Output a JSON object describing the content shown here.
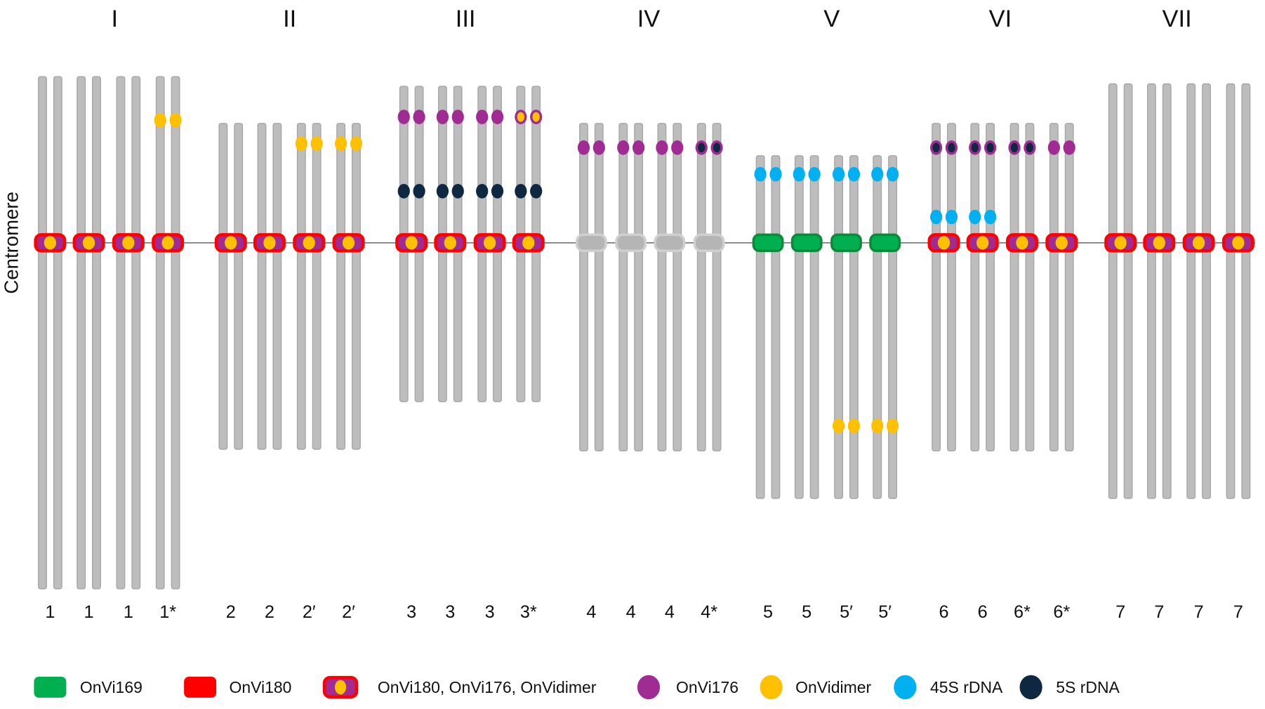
{
  "axis_label": "Centromere",
  "colors": {
    "chromosome": "#bdbdbd",
    "chromosome_edge": "#a6a6a6",
    "centromere_line": "#7f7f7f",
    "OnVi169": "#00b050",
    "OnVi180": "#ff0000",
    "OnVi176": "#a02b93",
    "OnVidimer": "#ffc000",
    "45S rDNA": "#00b0f0",
    "5S rDNA": "#0e2841",
    "none": "#bfbfbf"
  },
  "groups": [
    {
      "title": "I",
      "chromosomes": [
        {
          "label": "1",
          "centromere": "OnVi180, OnVi176, OnVidimer",
          "signals": []
        },
        {
          "label": "1",
          "centromere": "OnVi180, OnVi176, OnVidimer",
          "signals": []
        },
        {
          "label": "1",
          "centromere": "OnVi180, OnVi176, OnVidimer",
          "signals": []
        },
        {
          "label": "1*",
          "centromere": "OnVi180, OnVi176, OnVidimer",
          "signals": [
            "OnVidimer"
          ]
        }
      ]
    },
    {
      "title": "II",
      "chromosomes": [
        {
          "label": "2",
          "centromere": "OnVi180, OnVi176, OnVidimer",
          "signals": []
        },
        {
          "label": "2",
          "centromere": "OnVi180, OnVi176, OnVidimer",
          "signals": []
        },
        {
          "label": "2′",
          "centromere": "OnVi180, OnVi176, OnVidimer",
          "signals": [
            "OnVidimer"
          ]
        },
        {
          "label": "2′",
          "centromere": "OnVi180, OnVi176, OnVidimer",
          "signals": [
            "OnVidimer"
          ]
        }
      ]
    },
    {
      "title": "III",
      "chromosomes": [
        {
          "label": "3",
          "centromere": "OnVi180, OnVi176, OnVidimer",
          "signals": [
            "OnVi176",
            "5S rDNA"
          ]
        },
        {
          "label": "3",
          "centromere": "OnVi180, OnVi176, OnVidimer",
          "signals": [
            "OnVi176",
            "5S rDNA"
          ]
        },
        {
          "label": "3",
          "centromere": "OnVi180, OnVi176, OnVidimer",
          "signals": [
            "OnVi176",
            "5S rDNA"
          ]
        },
        {
          "label": "3*",
          "centromere": "OnVi180, OnVi176, OnVidimer",
          "signals": [
            "OnVi176+OnVidimer",
            "5S rDNA"
          ]
        }
      ]
    },
    {
      "title": "IV",
      "chromosomes": [
        {
          "label": "4",
          "centromere": "none",
          "signals": [
            "OnVi176"
          ]
        },
        {
          "label": "4",
          "centromere": "none",
          "signals": [
            "OnVi176"
          ]
        },
        {
          "label": "4",
          "centromere": "none",
          "signals": [
            "OnVi176"
          ]
        },
        {
          "label": "4*",
          "centromere": "none",
          "signals": [
            "OnVi176+5S rDNA"
          ]
        }
      ]
    },
    {
      "title": "V",
      "chromosomes": [
        {
          "label": "5",
          "centromere": "OnVi169",
          "signals": [
            "45S rDNA"
          ]
        },
        {
          "label": "5",
          "centromere": "OnVi169",
          "signals": [
            "45S rDNA"
          ]
        },
        {
          "label": "5′",
          "centromere": "OnVi169",
          "signals": [
            "45S rDNA",
            "OnVidimer"
          ]
        },
        {
          "label": "5′",
          "centromere": "OnVi169",
          "signals": [
            "45S rDNA",
            "OnVidimer"
          ]
        }
      ]
    },
    {
      "title": "VI",
      "chromosomes": [
        {
          "label": "6",
          "centromere": "OnVi180, OnVi176, OnVidimer",
          "signals": [
            "OnVi176+5S rDNA",
            "45S rDNA"
          ]
        },
        {
          "label": "6",
          "centromere": "OnVi180, OnVi176, OnVidimer",
          "signals": [
            "OnVi176+5S rDNA",
            "45S rDNA"
          ]
        },
        {
          "label": "6*",
          "centromere": "OnVi180, OnVi176, OnVidimer",
          "signals": [
            "OnVi176+5S rDNA"
          ]
        },
        {
          "label": "6*",
          "centromere": "OnVi180, OnVi176, OnVidimer",
          "signals": [
            "OnVi176"
          ]
        }
      ]
    },
    {
      "title": "VII",
      "chromosomes": [
        {
          "label": "7",
          "centromere": "OnVi180, OnVi176, OnVidimer",
          "signals": []
        },
        {
          "label": "7",
          "centromere": "OnVi180, OnVi176, OnVidimer",
          "signals": []
        },
        {
          "label": "7",
          "centromere": "OnVi180, OnVi176, OnVidimer",
          "signals": []
        },
        {
          "label": "7",
          "centromere": "OnVi180, OnVi176, OnVidimer",
          "signals": []
        }
      ]
    }
  ],
  "legend": [
    {
      "key": "OnVi169",
      "label": "OnVi169",
      "shape": "rect"
    },
    {
      "key": "OnVi180",
      "label": "OnVi180",
      "shape": "rect"
    },
    {
      "key": "mixed",
      "label": "OnVi180, OnVi176, OnVidimer",
      "shape": "mixed"
    },
    {
      "key": "OnVi176",
      "label": "OnVi176",
      "shape": "ellipse"
    },
    {
      "key": "OnVidimer",
      "label": "OnVidimer",
      "shape": "ellipse"
    },
    {
      "key": "45S rDNA",
      "label": "45S rDNA",
      "shape": "ellipse"
    },
    {
      "key": "5S rDNA",
      "label": "5S rDNA",
      "shape": "ellipse"
    }
  ]
}
